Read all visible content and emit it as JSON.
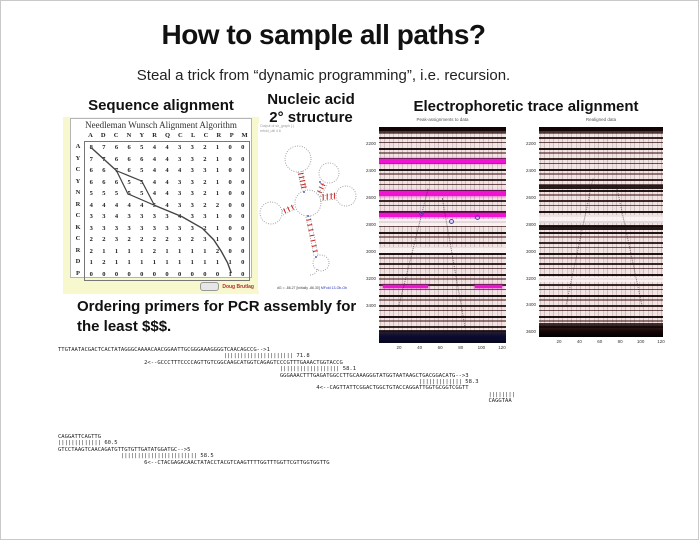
{
  "slide": {
    "title": "How to sample all paths?",
    "subtitle": "Steal a trick from “dynamic programming”, i.e. recursion."
  },
  "headings": {
    "sequence": "Sequence alignment",
    "rna_line1": "Nucleic acid",
    "rna_line2": "2° structure",
    "electro": "Electrophoretic trace alignment"
  },
  "nw": {
    "title": "Needleman Wunsch Alignment Algorithm",
    "col_headers": [
      "A",
      "D",
      "C",
      "N",
      "Y",
      "R",
      "Q",
      "C",
      "L",
      "C",
      "R",
      "P",
      "M"
    ],
    "row_labels": [
      "A",
      "Y",
      "C",
      "Y",
      "N",
      "R",
      "C",
      "K",
      "C",
      "R",
      "D",
      "P"
    ],
    "matrix": [
      [
        8,
        7,
        6,
        6,
        5,
        4,
        4,
        3,
        3,
        2,
        1,
        0,
        0
      ],
      [
        7,
        7,
        6,
        6,
        6,
        4,
        4,
        3,
        3,
        2,
        1,
        0,
        0
      ],
      [
        6,
        6,
        7,
        6,
        5,
        4,
        4,
        4,
        3,
        3,
        1,
        0,
        0
      ],
      [
        6,
        6,
        6,
        5,
        5,
        4,
        4,
        3,
        3,
        2,
        1,
        0,
        0
      ],
      [
        5,
        5,
        5,
        5,
        5,
        4,
        4,
        3,
        3,
        2,
        1,
        0,
        0
      ],
      [
        4,
        4,
        4,
        4,
        4,
        5,
        4,
        3,
        3,
        2,
        2,
        0,
        0
      ],
      [
        3,
        3,
        4,
        3,
        3,
        3,
        3,
        4,
        3,
        3,
        1,
        0,
        0
      ],
      [
        3,
        3,
        3,
        3,
        3,
        3,
        3,
        3,
        3,
        2,
        1,
        0,
        0
      ],
      [
        2,
        2,
        3,
        2,
        2,
        2,
        2,
        3,
        2,
        3,
        1,
        0,
        0
      ],
      [
        2,
        1,
        1,
        1,
        1,
        2,
        1,
        1,
        1,
        1,
        2,
        0,
        0
      ],
      [
        1,
        2,
        1,
        1,
        1,
        1,
        1,
        1,
        1,
        1,
        1,
        1,
        0
      ],
      [
        0,
        0,
        0,
        0,
        0,
        0,
        0,
        0,
        0,
        0,
        0,
        1,
        0
      ]
    ],
    "credit": "Doug Brutlag"
  },
  "rna": {
    "note_line1": "Output of sir_graph (.)",
    "note_line2": "mfold_util 4.6",
    "legend_left": "dG = -86.27   [initially  -86.30]",
    "legend_right": "MFold 13-Ob-Ob"
  },
  "gels": {
    "left": {
      "title": "Peak-assignments to data",
      "y_labels": [
        "2200",
        "2400",
        "2600",
        "2800",
        "3000",
        "3200",
        "3400"
      ],
      "x_labels": [
        "20",
        "40",
        "60",
        "80",
        "100",
        "120"
      ]
    },
    "right": {
      "title": "Realigned data",
      "y_labels": [
        "2200",
        "2400",
        "2600",
        "2800",
        "3000",
        "3200",
        "3400",
        "3600"
      ],
      "x_labels": [
        "20",
        "40",
        "60",
        "80",
        "100",
        "120"
      ]
    }
  },
  "ordering": {
    "line1": "Ordering primers for PCR assembly for",
    "line2": "the least $$$."
  },
  "primers": {
    "block1": [
      "TTGTAATACGACTCACTATAGGGCAAAACAACGGAATTGCGGGAAAGGGGTCAACAGCCG-->1",
      "                                                  ||||||||||||||||||||| 71.8",
      "                          2<--GCCCTTTCCCCAGTTGTCGGCAAGCATGGTCAGAGTCCCGTTTGAAACTGGTACCG",
      "                                                                   |||||||||||||||||| 58.1",
      "                                                                   GGGAAACTTTGAGATGGCCTTGCAAAGGGTATGGTAATAAGCTGACGGACATG-->3",
      "                                                                                                             ||||||||||||| 58.3",
      "                                                                              4<--CAGTTATTCGGACTGGCTGTACCAGGATTGGTGCGGTCGGTT",
      "                                                                                                                                  ||||||||",
      "                                                                                                                                  CAGGTAA"
    ],
    "block2": [
      "CAGGATTCAGTTG",
      "||||||||||||| 60.5",
      "GTCCTAAGTCAACAGATGTTGTGTTGATATGGATGC-->5",
      "                   ||||||||||||||||||||||| 58.5",
      "                          6<--CTACGAGACAACTATACCTACGTCAAGTTTTGGTTTGGTTCGTTGGTGGTTG"
    ]
  }
}
